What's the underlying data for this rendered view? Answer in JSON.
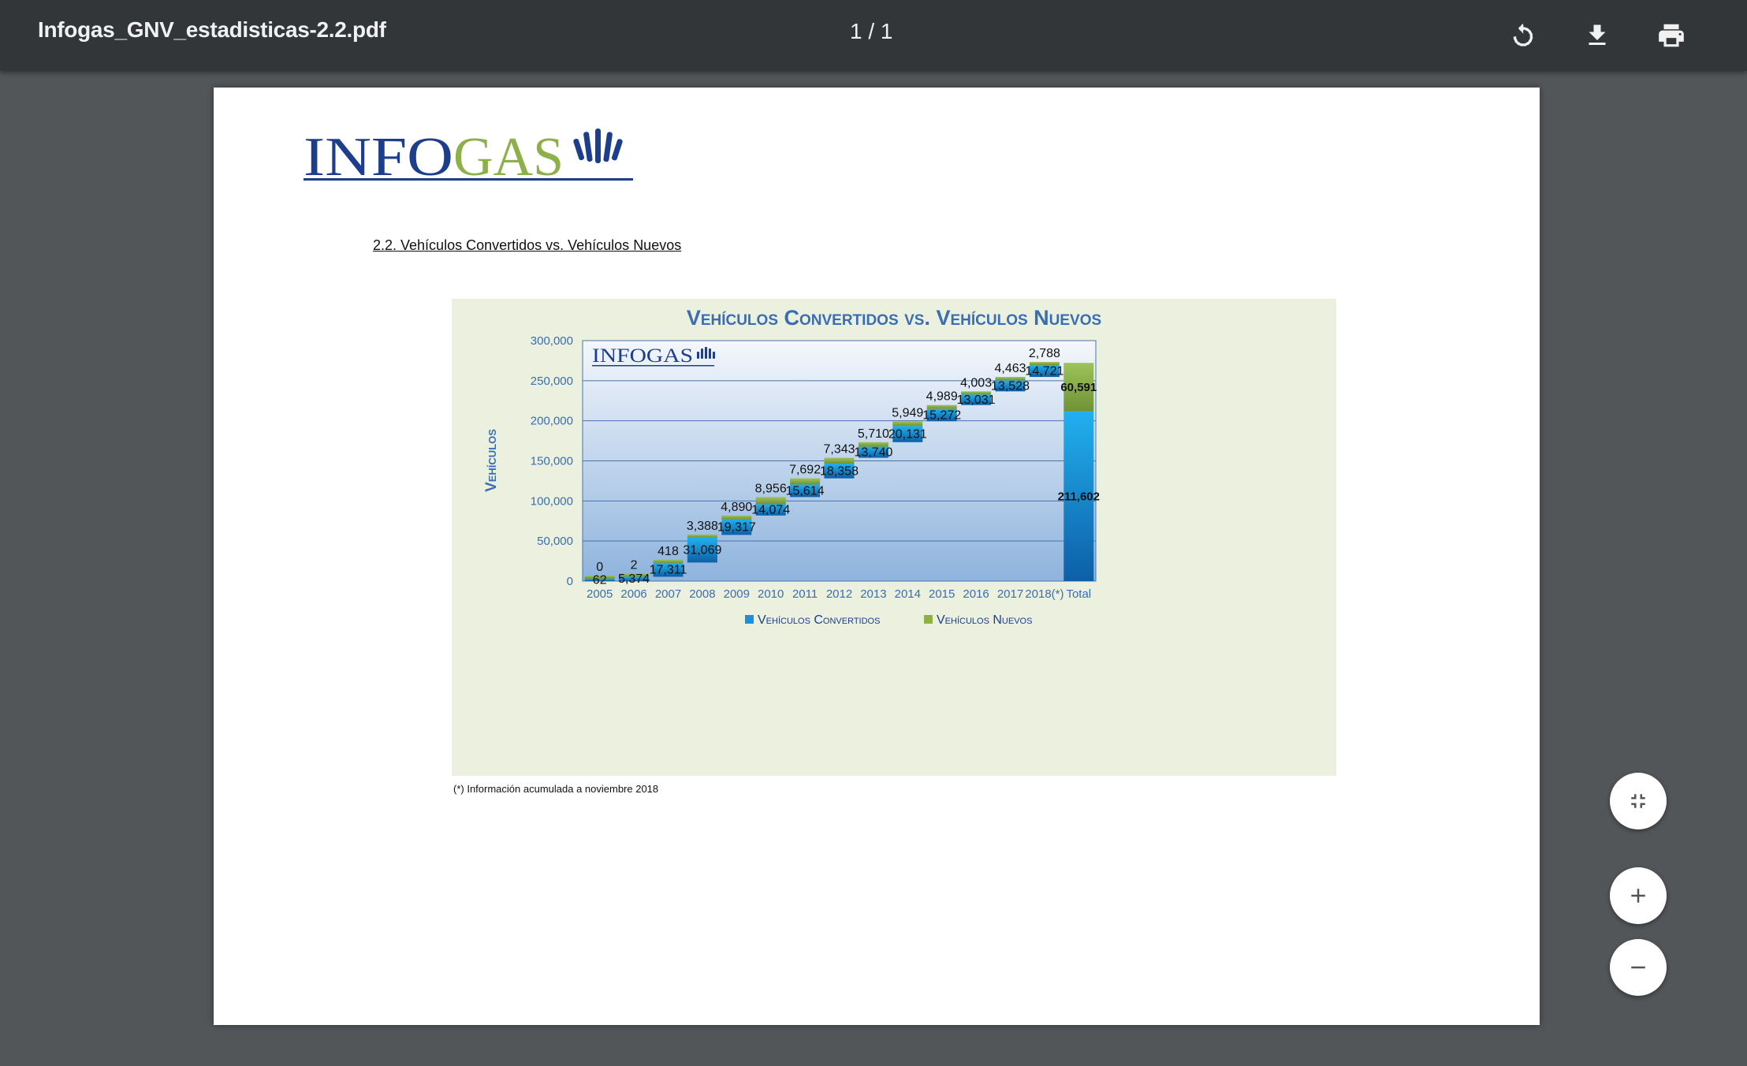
{
  "toolbar": {
    "title": "Infogas_GNV_estadisticas-2.2.pdf",
    "page_indicator": "1 / 1",
    "rotate_icon": "rotate-icon",
    "download_icon": "download-icon",
    "print_icon": "print-icon"
  },
  "document": {
    "logo": "INFOGAS",
    "section_heading": "2.2. Vehículos Convertidos vs. Vehículos Nuevos",
    "footnote": "(*) Información acumulada a noviembre 2018"
  },
  "zoom_controls": {
    "fit_icon": "fit-to-page-icon",
    "zoom_in_icon": "zoom-in-icon",
    "zoom_out_icon": "zoom-out-icon"
  },
  "colors": {
    "toolbar_bg": "#323639",
    "viewer_bg": "#525659",
    "chart_title": "#3a6db4",
    "converted": "#1f8fd6",
    "new": "#8db04a",
    "chart_bg": "#ebf1de"
  },
  "chart_data": {
    "type": "bar",
    "subtype": "waterfall-stacked",
    "title": "Vehículos Convertidos vs. Vehículos Nuevos",
    "ylabel": "Vehículos",
    "xlabel": "",
    "ylim": [
      0,
      300000
    ],
    "yticks": [
      "0",
      "50,000",
      "100,000",
      "150,000",
      "200,000",
      "250,000",
      "300,000"
    ],
    "categories": [
      "2005",
      "2006",
      "2007",
      "2008",
      "2009",
      "2010",
      "2011",
      "2012",
      "2013",
      "2014",
      "2015",
      "2016",
      "2017",
      "2018(*)",
      "Total"
    ],
    "series": [
      {
        "name": "Vehículos Convertidos",
        "values": [
          62,
          5374,
          17311,
          31069,
          19317,
          14074,
          15614,
          18358,
          13740,
          20131,
          15272,
          13031,
          13528,
          14721,
          211602
        ],
        "labels": [
          "62",
          "5,374",
          "17,311",
          "31,069",
          "19,317",
          "14,074",
          "15,614",
          "18,358",
          "13,740",
          "20,131",
          "15,272",
          "13,031",
          "13,528",
          "14,721",
          "211,602"
        ]
      },
      {
        "name": "Vehículos Nuevos",
        "values": [
          0,
          2,
          418,
          3388,
          4890,
          8956,
          7692,
          7343,
          5710,
          5949,
          4989,
          4003,
          4463,
          2788,
          60591
        ],
        "labels": [
          "0",
          "2",
          "418",
          "3,388",
          "4,890",
          "8,956",
          "7,692",
          "7,343",
          "5,710",
          "5,949",
          "4,989",
          "4,003",
          "4,463",
          "2,788",
          "60,591"
        ]
      }
    ],
    "grid": true,
    "legend": "bottom",
    "watermark": "INFOGAS"
  }
}
